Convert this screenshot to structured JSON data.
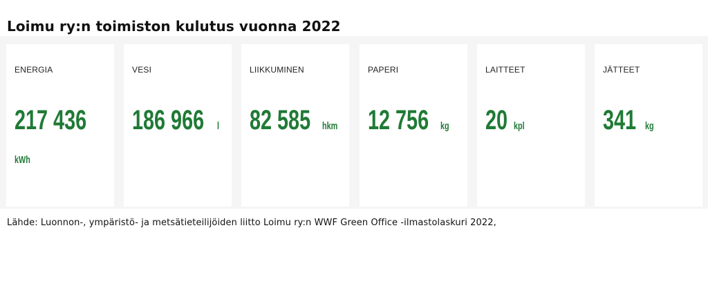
{
  "title": "Loimu ry:n toimiston kulutus vuonna 2022",
  "cards": [
    {
      "label": "ENERGIA",
      "value": "217 436",
      "unit": "kWh"
    },
    {
      "label": "VESI",
      "value": "186 966",
      "unit": "l"
    },
    {
      "label": "LIIKKUMINEN",
      "value": "82 585",
      "unit": "hkm"
    },
    {
      "label": "PAPERI",
      "value": "12 756",
      "unit": "kg"
    },
    {
      "label": "LAITTEET",
      "value": "20",
      "unit": "kpl"
    },
    {
      "label": "JÄTTEET",
      "value": "341",
      "unit": "kg"
    }
  ],
  "source": "Lähde: Luonnon-, ympäristö- ja metsätieteilijöiden liitto Loimu ry:n WWF Green Office -ilmastolaskuri 2022,",
  "colors": {
    "accent": "#1f7a35",
    "panel_background": "#f5f5f5",
    "card_background": "#ffffff"
  }
}
